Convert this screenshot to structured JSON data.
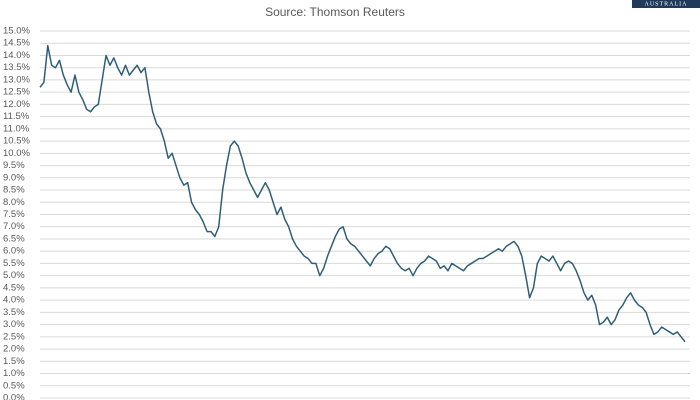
{
  "chart_data": {
    "type": "line",
    "title": "Source: Thomson Reuters",
    "color": "#2f5f78",
    "grid": true,
    "ylim": [
      0,
      15
    ],
    "yticks": [
      {
        "value": 0,
        "label": "0.0%"
      },
      {
        "value": 0.5,
        "label": "0.5%"
      },
      {
        "value": 1,
        "label": "1.0%"
      },
      {
        "value": 1.5,
        "label": "1.5%"
      },
      {
        "value": 2,
        "label": "2.0%"
      },
      {
        "value": 2.5,
        "label": "2.5%"
      },
      {
        "value": 3,
        "label": "3.0%"
      },
      {
        "value": 3.5,
        "label": "3.5%"
      },
      {
        "value": 4,
        "label": "4.0%"
      },
      {
        "value": 4.5,
        "label": "4.5%"
      },
      {
        "value": 5,
        "label": "5.0%"
      },
      {
        "value": 5.5,
        "label": "5.5%"
      },
      {
        "value": 6,
        "label": "6.0%"
      },
      {
        "value": 6.5,
        "label": "6.5%"
      },
      {
        "value": 7,
        "label": "7.0%"
      },
      {
        "value": 7.5,
        "label": "7.5%"
      },
      {
        "value": 8,
        "label": "8.0%"
      },
      {
        "value": 8.5,
        "label": "8.5%"
      },
      {
        "value": 9,
        "label": "9.0%"
      },
      {
        "value": 9.5,
        "label": "9.5%"
      },
      {
        "value": 10,
        "label": "10.0%"
      },
      {
        "value": 10.5,
        "label": "10.5%"
      },
      {
        "value": 11,
        "label": "11.0%"
      },
      {
        "value": 11.5,
        "label": "11.5%"
      },
      {
        "value": 12,
        "label": "12.0%"
      },
      {
        "value": 12.5,
        "label": "12.5%"
      },
      {
        "value": 13,
        "label": "13.0%"
      },
      {
        "value": 13.5,
        "label": "13.5%"
      },
      {
        "value": 14,
        "label": "14.0%"
      },
      {
        "value": 14.5,
        "label": "14.5%"
      },
      {
        "value": 15,
        "label": "15.0%"
      }
    ],
    "values": [
      12.7,
      12.9,
      14.4,
      13.6,
      13.5,
      13.8,
      13.2,
      12.8,
      12.5,
      13.2,
      12.5,
      12.2,
      11.8,
      11.7,
      11.9,
      12.0,
      13.0,
      14.0,
      13.6,
      13.9,
      13.5,
      13.2,
      13.6,
      13.2,
      13.4,
      13.6,
      13.3,
      13.5,
      12.5,
      11.7,
      11.2,
      11.0,
      10.5,
      9.8,
      10.0,
      9.5,
      9.0,
      8.7,
      8.8,
      8.0,
      7.7,
      7.5,
      7.2,
      6.8,
      6.8,
      6.6,
      7.0,
      8.5,
      9.5,
      10.3,
      10.5,
      10.3,
      9.8,
      9.2,
      8.8,
      8.5,
      8.2,
      8.5,
      8.8,
      8.5,
      8.0,
      7.5,
      7.8,
      7.3,
      7.0,
      6.5,
      6.2,
      6.0,
      5.8,
      5.7,
      5.5,
      5.5,
      5.0,
      5.3,
      5.8,
      6.2,
      6.6,
      6.9,
      7.0,
      6.5,
      6.3,
      6.2,
      6.0,
      5.8,
      5.6,
      5.4,
      5.7,
      5.9,
      6.0,
      6.2,
      6.1,
      5.8,
      5.5,
      5.3,
      5.2,
      5.3,
      5.0,
      5.3,
      5.5,
      5.6,
      5.8,
      5.7,
      5.6,
      5.3,
      5.4,
      5.2,
      5.5,
      5.4,
      5.3,
      5.2,
      5.4,
      5.5,
      5.6,
      5.7,
      5.7,
      5.8,
      5.9,
      6.0,
      6.1,
      6.0,
      6.2,
      6.3,
      6.4,
      6.2,
      5.8,
      5.0,
      4.1,
      4.5,
      5.5,
      5.8,
      5.7,
      5.6,
      5.8,
      5.5,
      5.2,
      5.5,
      5.6,
      5.5,
      5.2,
      4.8,
      4.3,
      4.0,
      4.2,
      3.8,
      3.0,
      3.1,
      3.3,
      3.0,
      3.2,
      3.6,
      3.8,
      4.1,
      4.3,
      4.0,
      3.8,
      3.7,
      3.5,
      3.0,
      2.6,
      2.7,
      2.9,
      2.8,
      2.7,
      2.6,
      2.7,
      2.5,
      2.3
    ]
  },
  "logo": "AUSTRALIA"
}
